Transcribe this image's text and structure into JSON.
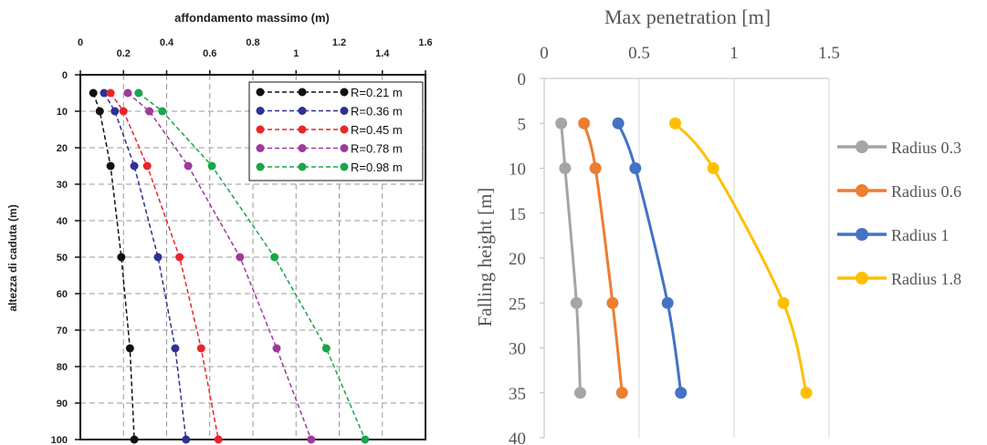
{
  "chart_data": [
    {
      "type": "line",
      "title": "affondamento massimo (m)",
      "xlabel": "affondamento massimo (m)",
      "ylabel": "altezza di caduta (m)",
      "xlim": [
        0,
        1.6
      ],
      "ylim": [
        0,
        100
      ],
      "y_inverted": true,
      "x_axis_position": "top",
      "x_ticks": [
        "0",
        "0.2",
        "0.4",
        "0.6",
        "0.8",
        "1",
        "1.2",
        "1.4",
        "1.6"
      ],
      "y_ticks": [
        "0",
        "10",
        "20",
        "30",
        "40",
        "50",
        "60",
        "70",
        "80",
        "90",
        "100"
      ],
      "grid": true,
      "line_style": "dashed",
      "legend_position": "top-right",
      "series": [
        {
          "name": "R=0.21 m",
          "color": "#111111",
          "points": [
            [
              0.06,
              5
            ],
            [
              0.09,
              10
            ],
            [
              0.14,
              25
            ],
            [
              0.19,
              50
            ],
            [
              0.23,
              75
            ],
            [
              0.25,
              100
            ]
          ]
        },
        {
          "name": "R=0.36 m",
          "color": "#2e3192",
          "points": [
            [
              0.11,
              5
            ],
            [
              0.16,
              10
            ],
            [
              0.25,
              25
            ],
            [
              0.36,
              50
            ],
            [
              0.44,
              75
            ],
            [
              0.49,
              100
            ]
          ]
        },
        {
          "name": "R=0.45 m",
          "color": "#e8262a",
          "points": [
            [
              0.14,
              5
            ],
            [
              0.2,
              10
            ],
            [
              0.31,
              25
            ],
            [
              0.46,
              50
            ],
            [
              0.56,
              75
            ],
            [
              0.64,
              100
            ]
          ]
        },
        {
          "name": "R=0.78 m",
          "color": "#9e3a9b",
          "points": [
            [
              0.22,
              5
            ],
            [
              0.32,
              10
            ],
            [
              0.5,
              25
            ],
            [
              0.74,
              50
            ],
            [
              0.91,
              75
            ],
            [
              1.07,
              100
            ]
          ]
        },
        {
          "name": "R=0.98 m",
          "color": "#1aa549",
          "points": [
            [
              0.27,
              5
            ],
            [
              0.38,
              10
            ],
            [
              0.61,
              25
            ],
            [
              0.9,
              50
            ],
            [
              1.14,
              75
            ],
            [
              1.32,
              100
            ]
          ]
        }
      ]
    },
    {
      "type": "line",
      "title": "Max penetration [m]",
      "xlabel": "Max penetration [m]",
      "ylabel": "Falling height [m]",
      "xlim": [
        0,
        1.5
      ],
      "ylim": [
        0,
        40
      ],
      "y_inverted": true,
      "x_axis_position": "top",
      "x_ticks": [
        "0",
        "0.5",
        "1",
        "1.5"
      ],
      "y_ticks": [
        "0",
        "5",
        "10",
        "15",
        "20",
        "25",
        "30",
        "35",
        "40"
      ],
      "grid": "vertical only",
      "line_style": "solid smooth",
      "legend_position": "right",
      "series": [
        {
          "name": "Radius 0.3",
          "color": "#a5a5a5",
          "points": [
            [
              0.09,
              5
            ],
            [
              0.11,
              10
            ],
            [
              0.17,
              25
            ],
            [
              0.19,
              35
            ]
          ]
        },
        {
          "name": "Radius 0.6",
          "color": "#ed7d31",
          "points": [
            [
              0.21,
              5
            ],
            [
              0.27,
              10
            ],
            [
              0.36,
              25
            ],
            [
              0.41,
              35
            ]
          ]
        },
        {
          "name": "Radius 1",
          "color": "#4472c4",
          "points": [
            [
              0.39,
              5
            ],
            [
              0.48,
              10
            ],
            [
              0.65,
              25
            ],
            [
              0.72,
              35
            ]
          ]
        },
        {
          "name": "Radius 1.8",
          "color": "#ffc000",
          "points": [
            [
              0.69,
              5
            ],
            [
              0.89,
              10
            ],
            [
              1.26,
              25
            ],
            [
              1.38,
              35
            ]
          ]
        }
      ]
    }
  ]
}
